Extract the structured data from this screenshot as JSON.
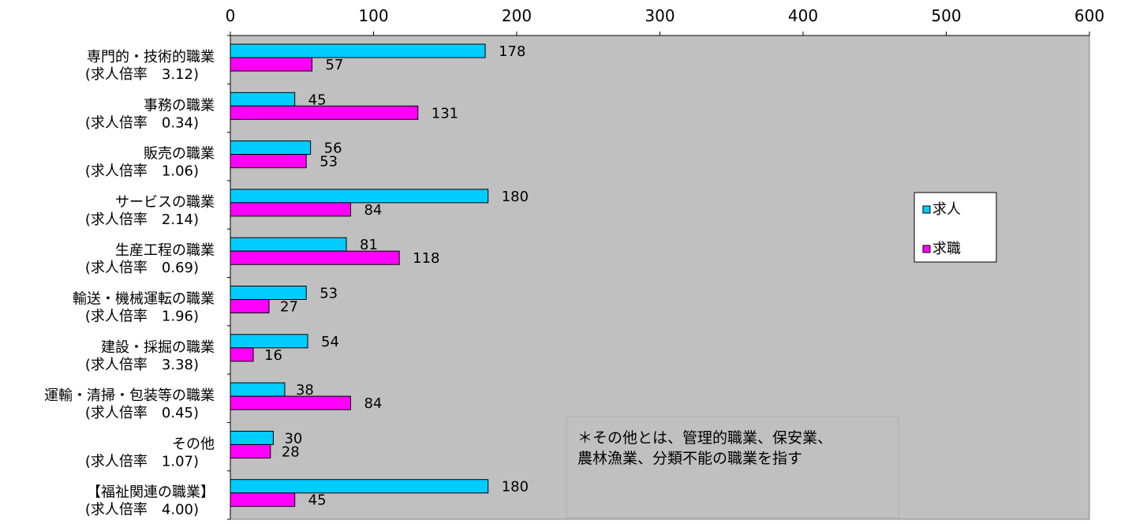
{
  "chart_data": {
    "type": "bar",
    "orientation": "horizontal",
    "xlim": [
      0,
      600
    ],
    "xticks": [
      0,
      100,
      200,
      300,
      400,
      500,
      600
    ],
    "axis_position": "top",
    "grid": false,
    "legend_position": "right",
    "categories": [
      {
        "name": "専門的・技術的職業",
        "ratio": "(求人倍率　3.12)"
      },
      {
        "name": "事務の職業",
        "ratio": "(求人倍率　0.34)"
      },
      {
        "name": "販売の職業",
        "ratio": "(求人倍率　1.06)"
      },
      {
        "name": "サービスの職業",
        "ratio": "(求人倍率　2.14)"
      },
      {
        "name": "生産工程の職業",
        "ratio": "(求人倍率　0.69)"
      },
      {
        "name": "輸送・機械運転の職業",
        "ratio": "(求人倍率　1.96)"
      },
      {
        "name": "建設・採掘の職業",
        "ratio": "(求人倍率　3.38)"
      },
      {
        "name": "運輸・清掃・包装等の職業",
        "ratio": "(求人倍率　0.45)"
      },
      {
        "name": "その他",
        "ratio": "(求人倍率　1.07)"
      },
      {
        "name": "【福祉関連の職業】",
        "ratio": "(求人倍率　4.00)"
      }
    ],
    "series": [
      {
        "name": "求人",
        "color": "#00ccff",
        "values": [
          178,
          45,
          56,
          180,
          81,
          53,
          54,
          38,
          30,
          180
        ]
      },
      {
        "name": "求職",
        "color": "#ff00ff",
        "values": [
          57,
          131,
          53,
          84,
          118,
          27,
          16,
          84,
          28,
          45
        ]
      }
    ],
    "plot_background": "#c0c0c0",
    "annotation": [
      "＊その他とは、管理的職業、保安業、",
      "農林漁業、分類不能の職業を指す"
    ]
  }
}
